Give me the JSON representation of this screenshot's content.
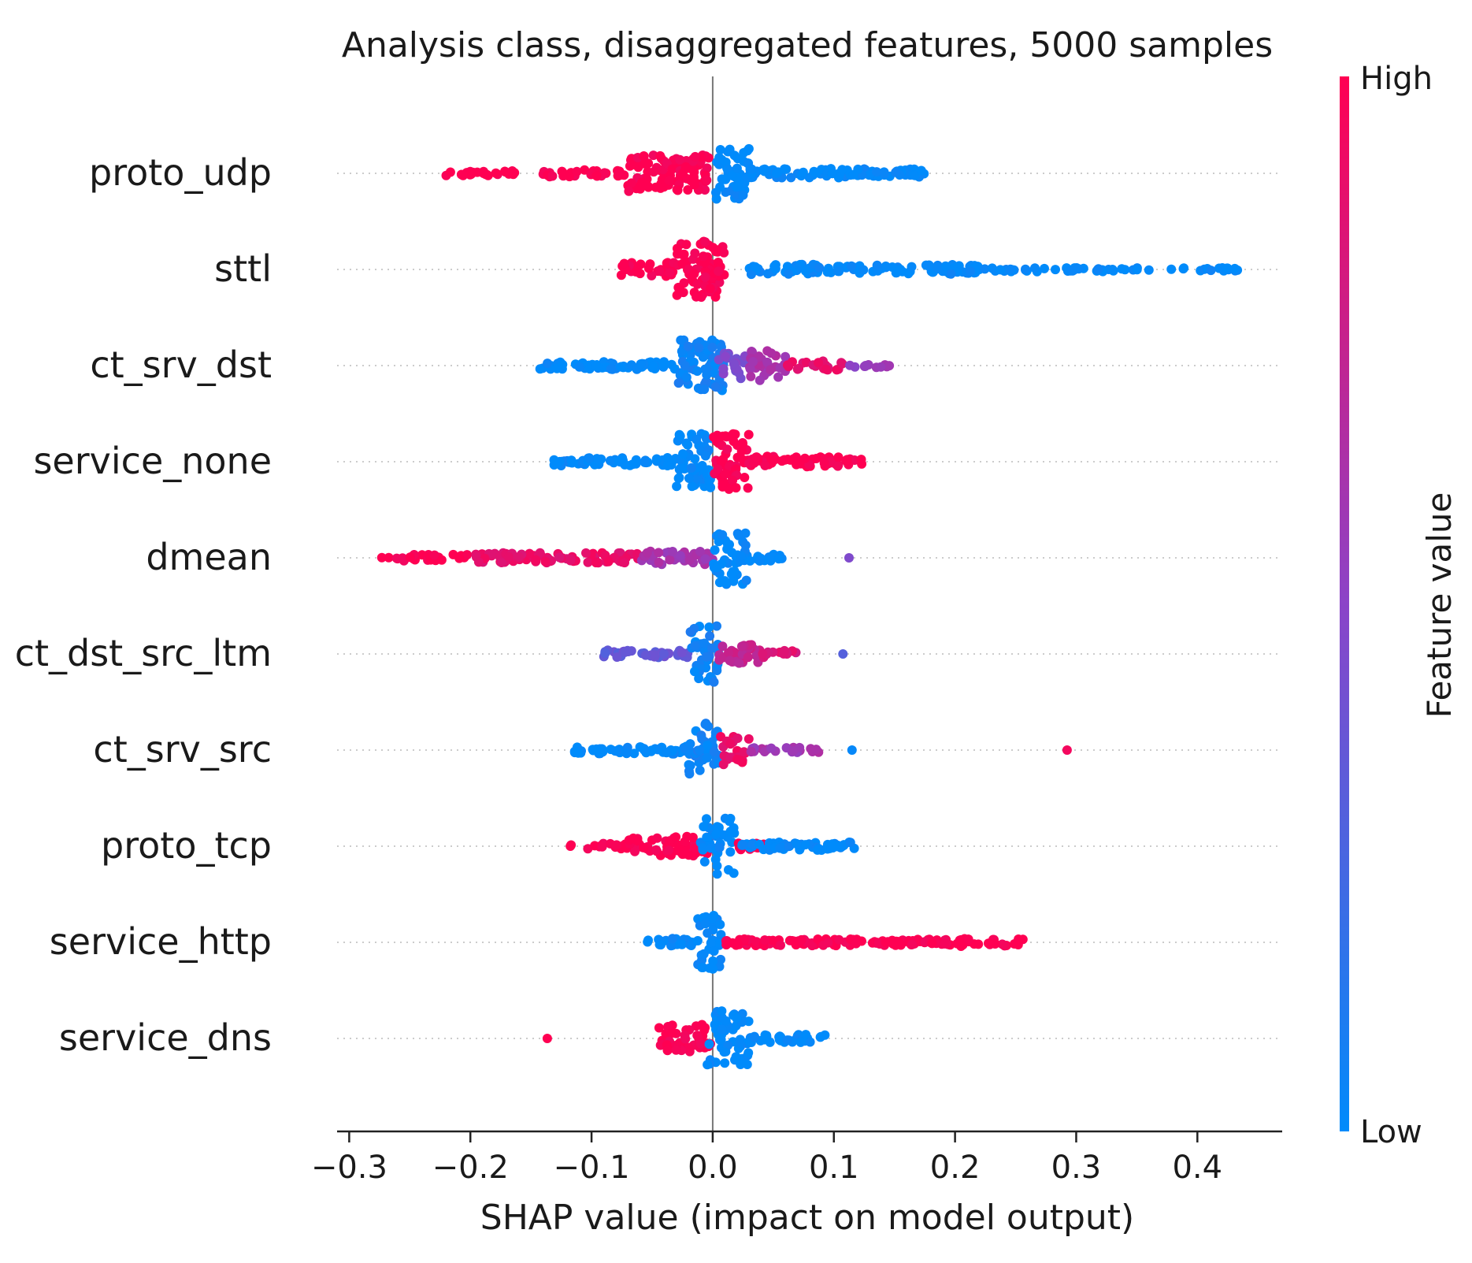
{
  "chart_data": {
    "type": "scatter",
    "subtype": "shap-beeswarm",
    "title": "Analysis class, disaggregated features, 5000 samples",
    "xlabel": "SHAP value (impact on model output)",
    "ylabel": "",
    "xlim": [
      -0.31,
      0.47
    ],
    "xticks": [
      -0.3,
      -0.2,
      -0.1,
      0.0,
      0.1,
      0.2,
      0.3,
      0.4
    ],
    "xtick_labels": [
      "−0.3",
      "−0.2",
      "−0.1",
      "0.0",
      "0.1",
      "0.2",
      "0.3",
      "0.4"
    ],
    "colorbar": {
      "label": "Feature value",
      "high_label": "High",
      "low_label": "Low",
      "high_color": "#ff0052",
      "mid_color": "#8b44c8",
      "low_color": "#008bfb"
    },
    "grid": false,
    "features": [
      {
        "name": "proto_udp",
        "segments": [
          {
            "from": -0.22,
            "to": -0.16,
            "value": 1.0,
            "spread": 0.08,
            "density": 1.1
          },
          {
            "from": -0.14,
            "to": -0.07,
            "value": 1.0,
            "spread": 0.1,
            "density": 1.2
          },
          {
            "from": -0.07,
            "to": -0.003,
            "value": 1.0,
            "spread": 0.55,
            "density": 4
          },
          {
            "from": 0.002,
            "to": 0.03,
            "value": 0.0,
            "spread": 0.8,
            "density": 5
          },
          {
            "from": 0.03,
            "to": 0.175,
            "value": 0.0,
            "spread": 0.14,
            "density": 1.6
          }
        ]
      },
      {
        "name": "sttl",
        "segments": [
          {
            "from": -0.077,
            "to": -0.03,
            "value": 1.0,
            "spread": 0.22,
            "density": 1.8
          },
          {
            "from": -0.03,
            "to": 0.01,
            "value": 1.0,
            "spread": 0.85,
            "density": 5
          },
          {
            "from": 0.03,
            "to": 0.22,
            "value": 0.0,
            "spread": 0.15,
            "density": 1.4
          },
          {
            "from": 0.22,
            "to": 0.34,
            "value": 0.0,
            "spread": 0.07,
            "density": 0.8
          },
          {
            "from": 0.34,
            "to": 0.435,
            "value": 0.0,
            "spread": 0.05,
            "density": 0.6
          }
        ]
      },
      {
        "name": "ct_srv_dst",
        "segments": [
          {
            "from": -0.145,
            "to": -0.03,
            "value": 0.0,
            "spread": 0.12,
            "density": 1.5
          },
          {
            "from": -0.03,
            "to": 0.01,
            "value": 0.05,
            "spread": 0.8,
            "density": 4.5
          },
          {
            "from": 0.005,
            "to": 0.03,
            "value": 0.45,
            "spread": 0.4,
            "density": 2.2
          },
          {
            "from": 0.03,
            "to": 0.06,
            "value": 0.62,
            "spread": 0.45,
            "density": 2.6
          },
          {
            "from": 0.06,
            "to": 0.11,
            "value": 0.88,
            "spread": 0.15,
            "density": 1.2
          },
          {
            "from": 0.11,
            "to": 0.15,
            "value": 0.55,
            "spread": 0.06,
            "density": 0.7
          }
        ]
      },
      {
        "name": "service_none",
        "segments": [
          {
            "from": -0.135,
            "to": -0.03,
            "value": 0.0,
            "spread": 0.12,
            "density": 1.5
          },
          {
            "from": -0.03,
            "to": 0.0,
            "value": 0.0,
            "spread": 0.85,
            "density": 5
          },
          {
            "from": 0.0,
            "to": 0.03,
            "value": 1.0,
            "spread": 0.85,
            "density": 5
          },
          {
            "from": 0.03,
            "to": 0.125,
            "value": 1.0,
            "spread": 0.16,
            "density": 1.7
          }
        ]
      },
      {
        "name": "dmean",
        "segments": [
          {
            "from": -0.275,
            "to": -0.2,
            "value": 1.0,
            "spread": 0.1,
            "density": 1.0
          },
          {
            "from": -0.2,
            "to": -0.06,
            "value": 0.9,
            "spread": 0.15,
            "density": 1.6
          },
          {
            "from": -0.06,
            "to": 0.0,
            "value": 0.6,
            "spread": 0.2,
            "density": 1.6
          },
          {
            "from": 0.0,
            "to": 0.03,
            "value": 0.0,
            "spread": 0.85,
            "density": 4.2
          },
          {
            "from": 0.03,
            "to": 0.07,
            "value": 0.0,
            "spread": 0.1,
            "density": 0.9
          },
          {
            "from": 0.112,
            "to": 0.113,
            "value": 0.5,
            "spread": 0.0,
            "density": 1
          }
        ]
      },
      {
        "name": "ct_dst_src_ltm",
        "segments": [
          {
            "from": -0.09,
            "to": -0.02,
            "value": 0.35,
            "spread": 0.12,
            "density": 1.4
          },
          {
            "from": -0.02,
            "to": 0.005,
            "value": 0.05,
            "spread": 0.85,
            "density": 3.8
          },
          {
            "from": 0.005,
            "to": 0.04,
            "value": 0.75,
            "spread": 0.3,
            "density": 2.2
          },
          {
            "from": 0.04,
            "to": 0.075,
            "value": 0.85,
            "spread": 0.1,
            "density": 1.0
          },
          {
            "from": 0.1,
            "to": 0.115,
            "value": 0.35,
            "spread": 0.0,
            "density": 0.25
          }
        ]
      },
      {
        "name": "ct_srv_src",
        "segments": [
          {
            "from": -0.115,
            "to": -0.02,
            "value": 0.0,
            "spread": 0.12,
            "density": 1.5
          },
          {
            "from": -0.02,
            "to": 0.005,
            "value": 0.05,
            "spread": 0.85,
            "density": 4.2
          },
          {
            "from": 0.005,
            "to": 0.03,
            "value": 0.9,
            "spread": 0.45,
            "density": 2.4
          },
          {
            "from": 0.03,
            "to": 0.09,
            "value": 0.6,
            "spread": 0.08,
            "density": 1.0
          },
          {
            "from": 0.11,
            "to": 0.12,
            "value": 0.05,
            "spread": 0.0,
            "density": 0.3
          },
          {
            "from": 0.292,
            "to": 0.293,
            "value": 1.0,
            "spread": 0.0,
            "density": 1
          }
        ]
      },
      {
        "name": "proto_tcp",
        "segments": [
          {
            "from": -0.125,
            "to": -0.07,
            "value": 1.0,
            "spread": 0.08,
            "density": 0.7
          },
          {
            "from": -0.07,
            "to": 0.0,
            "value": 1.0,
            "spread": 0.3,
            "density": 2.4
          },
          {
            "from": -0.01,
            "to": 0.02,
            "value": 0.0,
            "spread": 0.85,
            "density": 3.5
          },
          {
            "from": 0.02,
            "to": 0.045,
            "value": 1.0,
            "spread": 0.1,
            "density": 1.2
          },
          {
            "from": 0.02,
            "to": 0.118,
            "value": 0.0,
            "spread": 0.12,
            "density": 1.6
          }
        ]
      },
      {
        "name": "service_http",
        "segments": [
          {
            "from": -0.055,
            "to": -0.015,
            "value": 0.0,
            "spread": 0.12,
            "density": 1.5
          },
          {
            "from": -0.015,
            "to": 0.008,
            "value": 0.0,
            "spread": 0.85,
            "density": 4.2
          },
          {
            "from": 0.008,
            "to": 0.2,
            "value": 1.0,
            "spread": 0.1,
            "density": 1.7
          },
          {
            "from": 0.2,
            "to": 0.258,
            "value": 1.0,
            "spread": 0.12,
            "density": 1.2
          }
        ]
      },
      {
        "name": "service_dns",
        "segments": [
          {
            "from": -0.137,
            "to": -0.136,
            "value": 1.0,
            "spread": 0.0,
            "density": 1
          },
          {
            "from": -0.048,
            "to": 0.0,
            "value": 1.0,
            "spread": 0.45,
            "density": 2.6
          },
          {
            "from": -0.005,
            "to": 0.03,
            "value": 0.0,
            "spread": 0.85,
            "density": 4
          },
          {
            "from": 0.03,
            "to": 0.093,
            "value": 0.0,
            "spread": 0.12,
            "density": 1.5
          }
        ]
      }
    ]
  }
}
